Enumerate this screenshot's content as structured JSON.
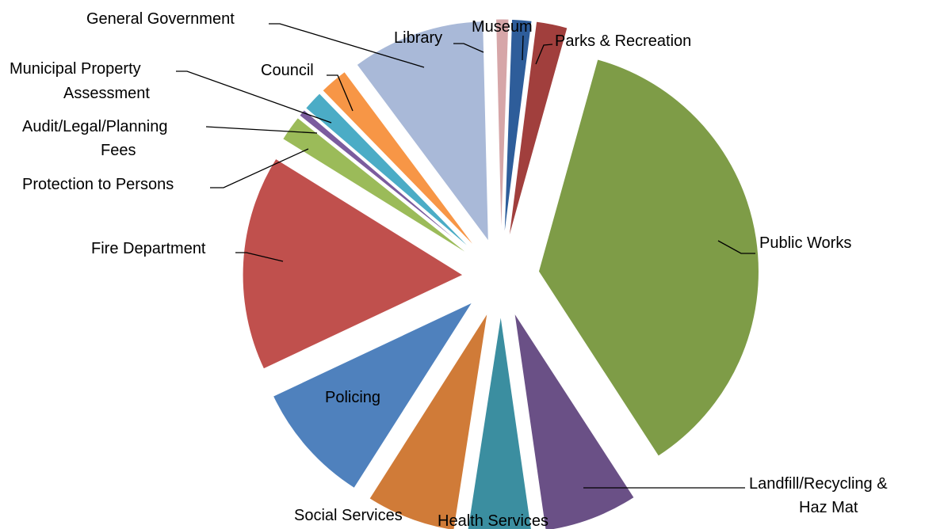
{
  "chart_data": {
    "type": "pie",
    "title": "",
    "slices": [
      {
        "name": "Museum",
        "value": 1.4,
        "color": "#2E5D9A"
      },
      {
        "name": "Parks & Recreation",
        "value": 2.2,
        "color": "#A13F3D"
      },
      {
        "name": "Public Works",
        "value": 35.0,
        "color": "#7E9C47"
      },
      {
        "name": "Landfill/Recycling & Haz  Mat",
        "value": 6.6,
        "color": "#6A5086"
      },
      {
        "name": "Health Services",
        "value": 4.5,
        "color": "#3B8EA0"
      },
      {
        "name": "Social Services",
        "value": 6.3,
        "color": "#D07B38"
      },
      {
        "name": "Policing",
        "value": 8.6,
        "color": "#4F81BD"
      },
      {
        "name": "Fire Department",
        "value": 15.2,
        "color": "#C0504D"
      },
      {
        "name": "Protection to Persons",
        "value": 1.8,
        "color": "#9BBB59"
      },
      {
        "name": "Audit/Legal/Planning Fees",
        "value": 0.5,
        "color": "#7B5C9E"
      },
      {
        "name": "Municipal Property Assessment",
        "value": 1.4,
        "color": "#4BACC6"
      },
      {
        "name": "Council",
        "value": 2.0,
        "color": "#F79646"
      },
      {
        "name": "General Government",
        "value": 9.4,
        "color": "#A9B9D8"
      },
      {
        "name": "Library",
        "value": 0.9,
        "color": "#D6A6A8"
      }
    ],
    "legend": "none (leader-line labels)",
    "data_labels": "category names"
  }
}
